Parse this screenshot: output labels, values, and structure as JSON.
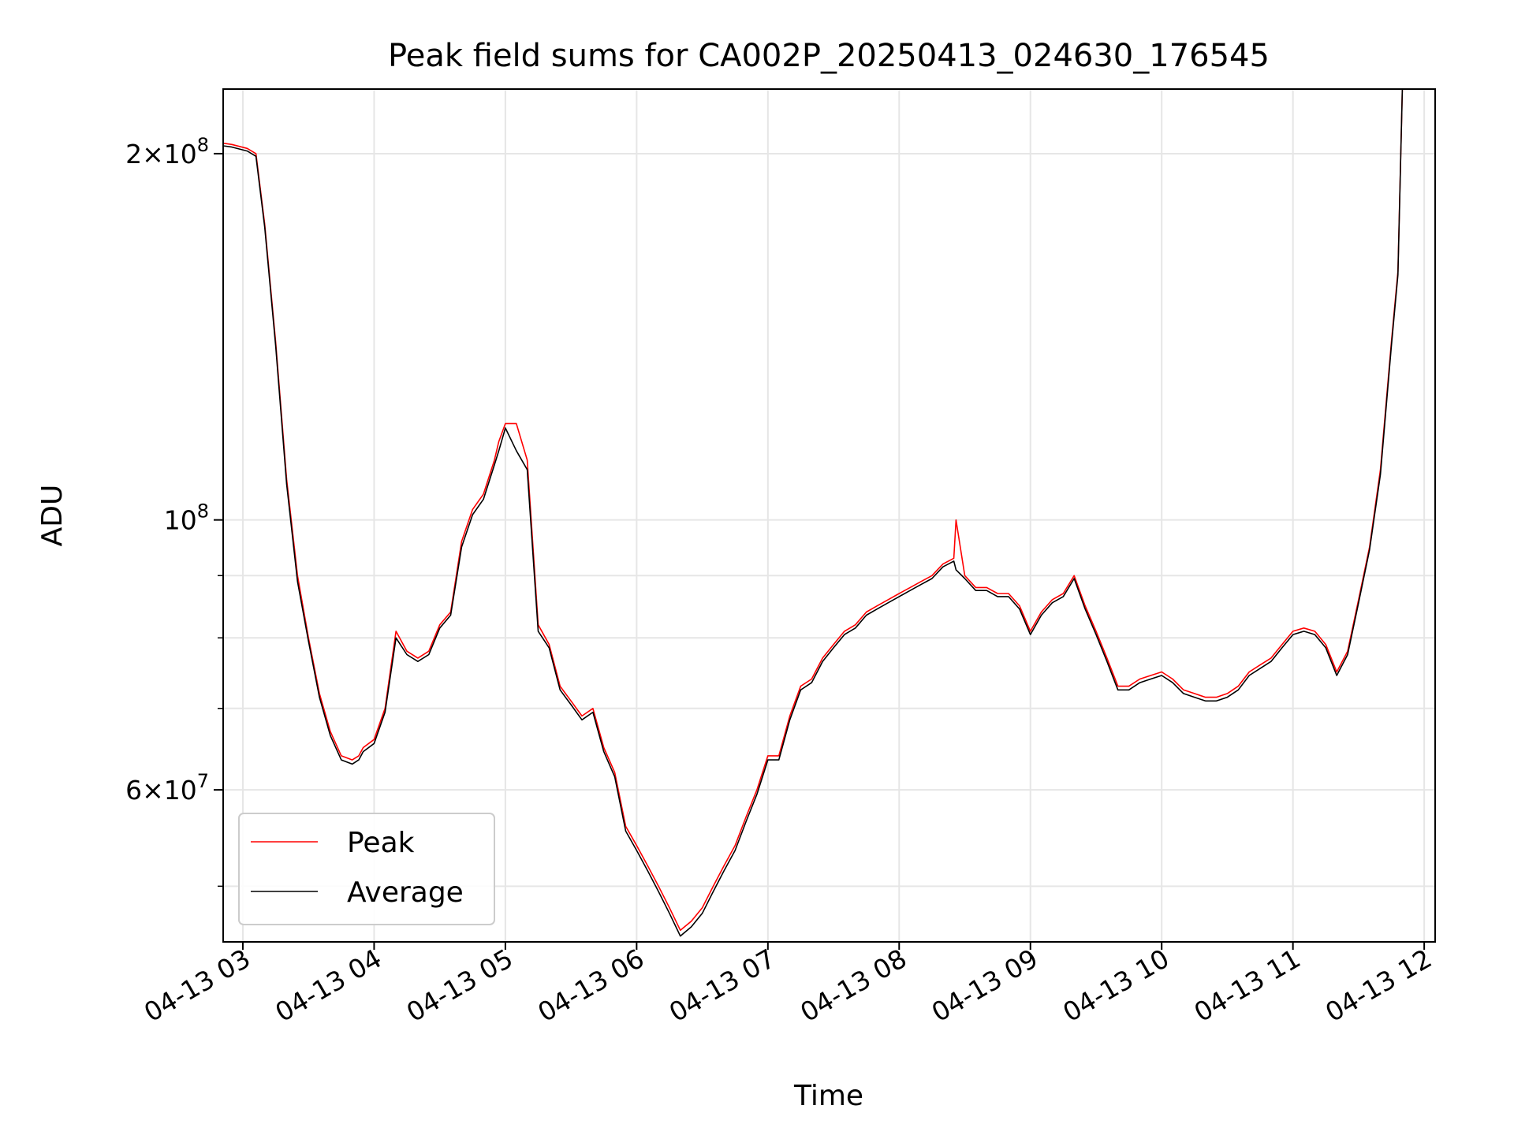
{
  "chart_data": {
    "type": "line",
    "title": "Peak field sums for CA002P_20250413_024630_176545",
    "xlabel": "Time",
    "ylabel": "ADU",
    "yscale": "log",
    "ylim": [
      45000000,
      226000000
    ],
    "xlim": [
      "2025-04-13 02:51",
      "2025-04-13 12:05"
    ],
    "grid": true,
    "legend": {
      "placement": "lower-left",
      "entries": [
        "Peak",
        "Average"
      ]
    },
    "x_tick_labels": [
      "04-13 03",
      "04-13 04",
      "04-13 05",
      "04-13 06",
      "04-13 07",
      "04-13 08",
      "04-13 09",
      "04-13 10",
      "04-13 11",
      "04-13 12"
    ],
    "y_tick_labels": [
      {
        "value": 200000000,
        "mantissa": "2",
        "exponent": "8"
      },
      {
        "value": 100000000,
        "mantissa": "",
        "exponent": "8"
      },
      {
        "value": 60000000,
        "mantissa": "6",
        "exponent": "7"
      }
    ],
    "colors": {
      "Peak": "#ff0000",
      "Average": "#000000"
    },
    "x": [
      "2025-04-13 02:51",
      "2025-04-13 02:55",
      "2025-04-13 03:02",
      "2025-04-13 03:06",
      "2025-04-13 03:10",
      "2025-04-13 03:15",
      "2025-04-13 03:20",
      "2025-04-13 03:25",
      "2025-04-13 03:30",
      "2025-04-13 03:35",
      "2025-04-13 03:40",
      "2025-04-13 03:45",
      "2025-04-13 03:50",
      "2025-04-13 03:53",
      "2025-04-13 03:55",
      "2025-04-13 04:00",
      "2025-04-13 04:05",
      "2025-04-13 04:10",
      "2025-04-13 04:15",
      "2025-04-13 04:20",
      "2025-04-13 04:25",
      "2025-04-13 04:30",
      "2025-04-13 04:35",
      "2025-04-13 04:40",
      "2025-04-13 04:45",
      "2025-04-13 04:50",
      "2025-04-13 04:55",
      "2025-04-13 04:57",
      "2025-04-13 05:00",
      "2025-04-13 05:05",
      "2025-04-13 05:10",
      "2025-04-13 05:15",
      "2025-04-13 05:20",
      "2025-04-13 05:25",
      "2025-04-13 05:30",
      "2025-04-13 05:35",
      "2025-04-13 05:40",
      "2025-04-13 05:45",
      "2025-04-13 05:50",
      "2025-04-13 05:55",
      "2025-04-13 06:00",
      "2025-04-13 06:05",
      "2025-04-13 06:10",
      "2025-04-13 06:15",
      "2025-04-13 06:20",
      "2025-04-13 06:25",
      "2025-04-13 06:30",
      "2025-04-13 06:35",
      "2025-04-13 06:40",
      "2025-04-13 06:45",
      "2025-04-13 06:50",
      "2025-04-13 06:55",
      "2025-04-13 07:00",
      "2025-04-13 07:05",
      "2025-04-13 07:10",
      "2025-04-13 07:15",
      "2025-04-13 07:20",
      "2025-04-13 07:25",
      "2025-04-13 07:30",
      "2025-04-13 07:35",
      "2025-04-13 07:40",
      "2025-04-13 07:45",
      "2025-04-13 07:50",
      "2025-04-13 07:55",
      "2025-04-13 08:00",
      "2025-04-13 08:05",
      "2025-04-13 08:10",
      "2025-04-13 08:15",
      "2025-04-13 08:20",
      "2025-04-13 08:25",
      "2025-04-13 08:26",
      "2025-04-13 08:30",
      "2025-04-13 08:35",
      "2025-04-13 08:40",
      "2025-04-13 08:45",
      "2025-04-13 08:50",
      "2025-04-13 08:55",
      "2025-04-13 09:00",
      "2025-04-13 09:05",
      "2025-04-13 09:10",
      "2025-04-13 09:15",
      "2025-04-13 09:20",
      "2025-04-13 09:25",
      "2025-04-13 09:30",
      "2025-04-13 09:35",
      "2025-04-13 09:40",
      "2025-04-13 09:45",
      "2025-04-13 09:50",
      "2025-04-13 09:55",
      "2025-04-13 10:00",
      "2025-04-13 10:05",
      "2025-04-13 10:10",
      "2025-04-13 10:15",
      "2025-04-13 10:20",
      "2025-04-13 10:25",
      "2025-04-13 10:30",
      "2025-04-13 10:35",
      "2025-04-13 10:40",
      "2025-04-13 10:45",
      "2025-04-13 10:50",
      "2025-04-13 10:55",
      "2025-04-13 11:00",
      "2025-04-13 11:05",
      "2025-04-13 11:10",
      "2025-04-13 11:15",
      "2025-04-13 11:20",
      "2025-04-13 11:25",
      "2025-04-13 11:30",
      "2025-04-13 11:35",
      "2025-04-13 11:40",
      "2025-04-13 11:45",
      "2025-04-13 11:48",
      "2025-04-13 11:50"
    ],
    "series": [
      {
        "name": "Peak",
        "values": [
          204000000,
          203500000,
          202000000,
          200000000,
          175000000,
          140000000,
          108000000,
          90000000,
          80000000,
          72000000,
          67000000,
          64000000,
          63500000,
          64000000,
          65000000,
          66000000,
          70000000,
          81000000,
          78000000,
          77000000,
          78000000,
          82000000,
          84000000,
          96000000,
          102000000,
          105000000,
          112000000,
          116000000,
          120000000,
          120000000,
          112000000,
          82000000,
          79000000,
          73000000,
          71000000,
          69000000,
          70000000,
          65000000,
          62000000,
          56000000,
          54000000,
          52000000,
          50000000,
          48000000,
          46000000,
          46800000,
          48000000,
          50000000,
          52000000,
          54000000,
          57000000,
          60000000,
          64000000,
          64000000,
          69000000,
          73000000,
          74000000,
          77000000,
          79000000,
          81000000,
          82000000,
          84000000,
          85000000,
          86000000,
          87000000,
          88000000,
          89000000,
          90000000,
          92000000,
          93000000,
          100000000,
          90000000,
          88000000,
          88000000,
          87000000,
          87000000,
          85000000,
          81000000,
          84000000,
          86000000,
          87000000,
          90000000,
          85000000,
          81000000,
          77000000,
          73000000,
          73000000,
          74000000,
          74500000,
          75000000,
          74000000,
          72500000,
          72000000,
          71500000,
          71500000,
          72000000,
          73000000,
          75000000,
          76000000,
          77000000,
          79000000,
          81000000,
          81500000,
          81000000,
          79000000,
          75000000,
          78000000,
          86000000,
          95000000,
          110000000,
          140000000,
          160000000,
          226000000
        ]
      },
      {
        "name": "Average",
        "values": [
          203000000,
          202500000,
          201000000,
          199000000,
          174000000,
          139000000,
          107000000,
          89000000,
          79500000,
          71500000,
          66500000,
          63500000,
          63000000,
          63500000,
          64500000,
          65500000,
          69500000,
          80000000,
          77500000,
          76500000,
          77500000,
          81500000,
          83500000,
          95000000,
          101000000,
          104000000,
          111000000,
          114000000,
          119000000,
          114000000,
          110000000,
          81000000,
          78500000,
          72500000,
          70500000,
          68500000,
          69500000,
          64500000,
          61500000,
          55500000,
          53500000,
          51500000,
          49500000,
          47500000,
          45500000,
          46300000,
          47500000,
          49500000,
          51500000,
          53500000,
          56500000,
          59500000,
          63500000,
          63500000,
          68500000,
          72500000,
          73500000,
          76500000,
          78500000,
          80500000,
          81500000,
          83500000,
          84500000,
          85500000,
          86500000,
          87500000,
          88500000,
          89500000,
          91500000,
          92500000,
          91000000,
          89500000,
          87500000,
          87500000,
          86500000,
          86500000,
          84500000,
          80500000,
          83500000,
          85500000,
          86500000,
          89500000,
          84500000,
          80500000,
          76500000,
          72500000,
          72500000,
          73500000,
          74000000,
          74500000,
          73500000,
          72000000,
          71500000,
          71000000,
          71000000,
          71500000,
          72500000,
          74500000,
          75500000,
          76500000,
          78500000,
          80500000,
          81000000,
          80500000,
          78500000,
          74500000,
          77500000,
          85500000,
          94500000,
          109000000,
          139000000,
          159000000,
          226000000
        ]
      }
    ]
  }
}
